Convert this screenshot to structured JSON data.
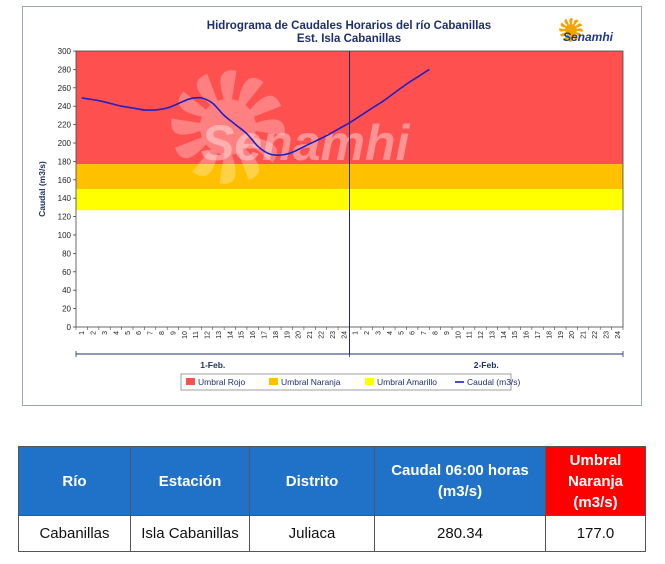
{
  "logo_text": "Senamhi",
  "watermark": "Senamhi",
  "chart_data": {
    "type": "line",
    "title": "Hidrograma de Caudales Horarios del río Cabanillas",
    "subtitle": "Est. Isla Cabanillas",
    "ylabel": "Caudal (m3/s)",
    "xlabel": "",
    "ylim": [
      0,
      300
    ],
    "yticks": [
      0,
      20,
      40,
      60,
      80,
      100,
      120,
      140,
      160,
      180,
      200,
      220,
      240,
      260,
      280,
      300
    ],
    "x_hours": [
      "1",
      "2",
      "3",
      "4",
      "5",
      "6",
      "7",
      "8",
      "9",
      "10",
      "11",
      "12",
      "13",
      "14",
      "15",
      "16",
      "17",
      "18",
      "19",
      "20",
      "21",
      "22",
      "23",
      "24"
    ],
    "days": [
      "1-Feb.",
      "2-Feb."
    ],
    "grid": false,
    "legend_position": "bottom",
    "thresholds": [
      {
        "name": "Umbral Rojo",
        "from": 177,
        "to": 300,
        "color": "#ff5050"
      },
      {
        "name": "Umbral Naranja",
        "from": 150,
        "to": 177,
        "color": "#ffc000"
      },
      {
        "name": "Umbral Amarillo",
        "from": 127,
        "to": 150,
        "color": "#ffff00"
      }
    ],
    "series": [
      {
        "name": "Caudal (m3/s)",
        "color": "#1f1fc8",
        "x": [
          0.5,
          1,
          2,
          3,
          4,
          5,
          6,
          7,
          8,
          9,
          10,
          11,
          12,
          13,
          14,
          15,
          16,
          17,
          18,
          19,
          20,
          21,
          22,
          23,
          24,
          25,
          26,
          27,
          28,
          29,
          30,
          31
        ],
        "y": [
          249,
          248,
          246,
          243,
          240,
          238,
          236,
          236,
          238,
          243,
          248,
          249,
          243,
          230,
          220,
          210,
          196,
          188,
          187,
          190,
          196,
          202,
          208,
          215,
          222,
          230,
          238,
          246,
          255,
          264,
          272,
          280
        ]
      }
    ]
  },
  "table": {
    "headers": [
      "Río",
      "Estación",
      "Distrito",
      "Caudal  06:00 horas (m3/s)",
      "Umbral Naranja (m3/s)"
    ],
    "row": [
      "Cabanillas",
      "Isla Cabanillas",
      "Juliaca",
      "280.34",
      "177.0"
    ]
  }
}
